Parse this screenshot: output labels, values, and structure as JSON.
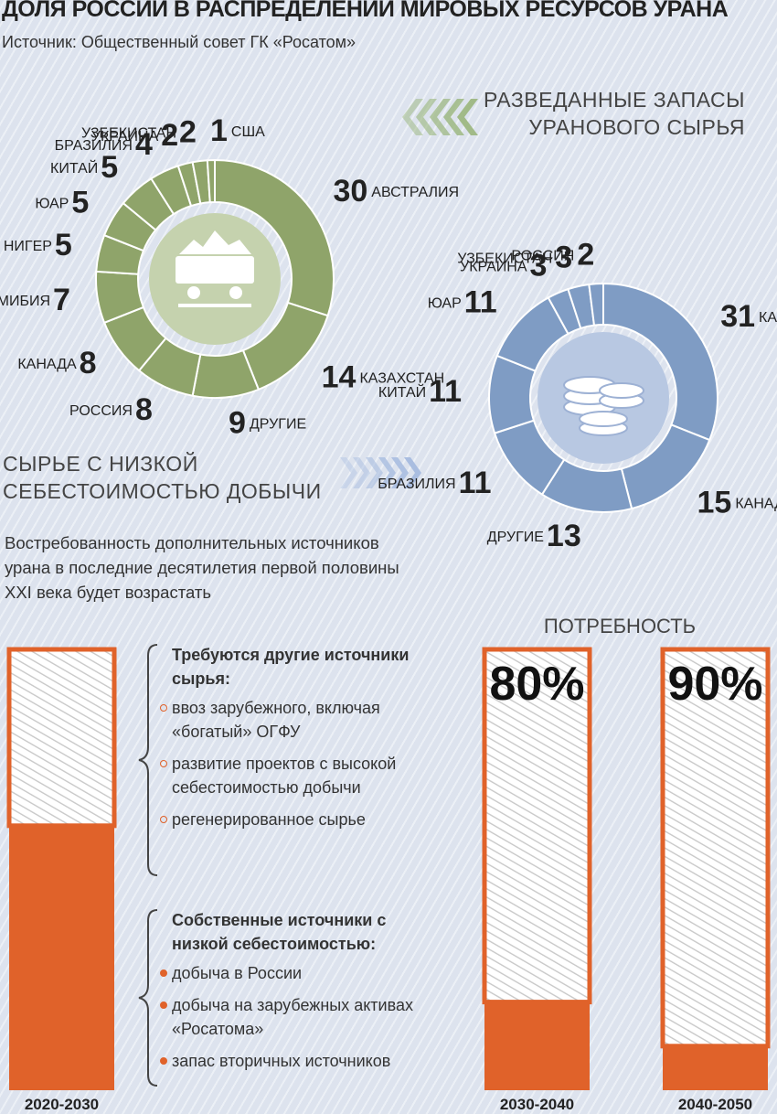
{
  "title": "ДОЛЯ РОССИИ В РАСПРЕДЕЛЕНИИ МИРОВЫХ РЕСУРСОВ УРАНА",
  "source": "Источник: Общественный совет ГК «Росатом»",
  "note": "Востребованность дополнительных источников урана в последние десятилетия первой половины XXI века будет возрастать",
  "needs": {
    "heading": "Требуются другие источники сырья:",
    "items": [
      "ввоз зарубежного, включая «богатый» ОГФУ",
      "развитие проектов с высокой себестоимостью добычи",
      "регенерированное сырье"
    ]
  },
  "own": {
    "heading": "Собственные источники с низкой себестоимостью:",
    "items": [
      "добыча в России",
      "добыча на зарубежных активах «Росатома»",
      "запас вторичных источников"
    ]
  },
  "chart_data": [
    {
      "type": "donut",
      "title": "СЫРЬЕ С НИЗКОЙ СЕБЕСТОИМОСТЬЮ ДОБЫЧИ",
      "color": "#8fa46a",
      "categories": [
        "АВСТРАЛИЯ",
        "КАЗАХСТАН",
        "ДРУГИЕ",
        "РОССИЯ",
        "КАНАДА",
        "НАМИБИЯ",
        "НИГЕР",
        "ЮАР",
        "КИТАЙ",
        "БРАЗИЛИЯ",
        "УКРАИНА",
        "УЗБЕКИСТАН",
        "США"
      ],
      "values": [
        30,
        14,
        9,
        8,
        8,
        7,
        5,
        5,
        5,
        4,
        2,
        2,
        1
      ]
    },
    {
      "type": "donut",
      "title": "РАЗВЕДАННЫЕ ЗАПАСЫ УРАНОВОГО СЫРЬЯ",
      "color": "#7f9cc4",
      "categories": [
        "КАЗАХСТАН",
        "КАНАДА",
        "ДРУГИЕ",
        "БРАЗИЛИЯ",
        "КИТАЙ",
        "ЮАР",
        "УКРАИНА",
        "УЗБЕКИСТАН",
        "РОССИЯ"
      ],
      "values": [
        31,
        15,
        13,
        11,
        11,
        11,
        3,
        3,
        2
      ]
    },
    {
      "type": "bar",
      "title": "ПОТРЕБНОСТЬ",
      "color": "#e0622a",
      "categories": [
        "2020-2030",
        "2030-2040",
        "2040-2050"
      ],
      "values": [
        40,
        80,
        90
      ],
      "value_labels": [
        null,
        "80%",
        "90%"
      ],
      "ylim": [
        0,
        100
      ]
    }
  ]
}
